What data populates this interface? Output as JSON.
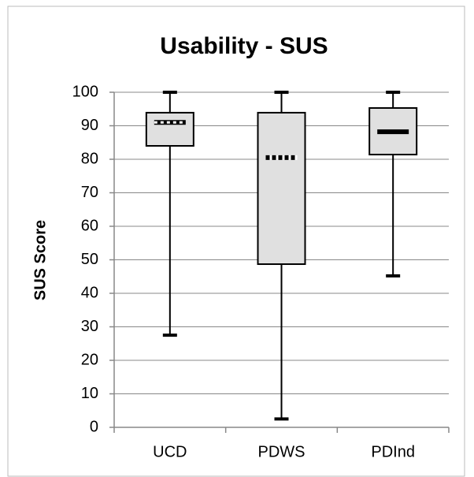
{
  "chart_data": {
    "type": "box",
    "title": "Usability - SUS",
    "y_label": "SUS Score",
    "categories": [
      "UCD",
      "PDWS",
      "PDInd"
    ],
    "min": [
      27.5,
      2.5,
      45.2
    ],
    "q1": [
      84,
      48.7,
      81.4
    ],
    "median": [
      91,
      80.5,
      88.2
    ],
    "q3": [
      93.9,
      93.9,
      95.3
    ],
    "max": [
      100,
      100,
      100
    ],
    "median_styles": [
      "dotted",
      "dashed",
      "solid"
    ],
    "box_color": "#e0e0e0",
    "ylim": [
      0,
      100
    ],
    "yticks": [
      0,
      10,
      20,
      30,
      40,
      50,
      60,
      70,
      80,
      90,
      100
    ],
    "grid": true
  }
}
